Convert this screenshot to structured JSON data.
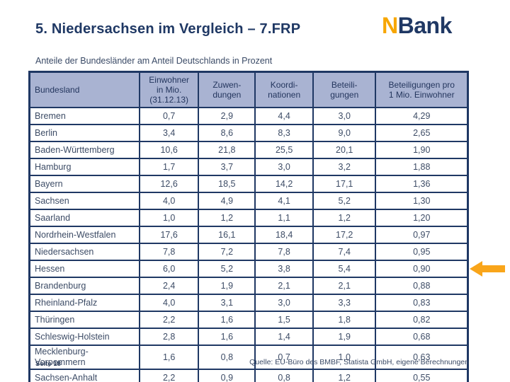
{
  "slide": {
    "title": "5. Niedersachsen im Vergleich – 7.FRP",
    "subtitle": "Anteile der Bundesländer am Anteil Deutschlands in Prozent",
    "logo": {
      "part1": "N",
      "part2": "Bank"
    },
    "footer": {
      "page": "Seite 18",
      "source": "Quelle: EU-Büro des BMBF, Statista GmbH, eigene Berechnungen"
    }
  },
  "colors": {
    "navy": "#1f3864",
    "header_bg": "#a9b3d2",
    "body_text": "#3d4c66",
    "accent_orange": "#f9a51a",
    "logo_orange": "#f7a600"
  },
  "table": {
    "columns": [
      "Bundesland",
      "Einwohner\nin Mio.\n(31.12.13)",
      "Zuwen-\ndungen",
      "Koordi-\nnationen",
      "Beteili-\ngungen",
      "Beteiligungen pro\n1 Mio. Einwohner"
    ],
    "arrow_row": "Hessen",
    "rows": [
      {
        "name": "Bremen",
        "values": [
          "0,7",
          "2,9",
          "4,4",
          "3,0",
          "4,29"
        ]
      },
      {
        "name": "Berlin",
        "values": [
          "3,4",
          "8,6",
          "8,3",
          "9,0",
          "2,65"
        ]
      },
      {
        "name": "Baden-Württemberg",
        "values": [
          "10,6",
          "21,8",
          "25,5",
          "20,1",
          "1,90"
        ]
      },
      {
        "name": "Hamburg",
        "values": [
          "1,7",
          "3,7",
          "3,0",
          "3,2",
          "1,88"
        ]
      },
      {
        "name": "Bayern",
        "values": [
          "12,6",
          "18,5",
          "14,2",
          "17,1",
          "1,36"
        ]
      },
      {
        "name": "Sachsen",
        "values": [
          "4,0",
          "4,9",
          "4,1",
          "5,2",
          "1,30"
        ]
      },
      {
        "name": "Saarland",
        "values": [
          "1,0",
          "1,2",
          "1,1",
          "1,2",
          "1,20"
        ]
      },
      {
        "name": "Nordrhein-Westfalen",
        "values": [
          "17,6",
          "16,1",
          "18,4",
          "17,2",
          "0,97"
        ]
      },
      {
        "name": "Niedersachsen",
        "values": [
          "7,8",
          "7,2",
          "7,8",
          "7,4",
          "0,95"
        ]
      },
      {
        "name": "Hessen",
        "values": [
          "6,0",
          "5,2",
          "3,8",
          "5,4",
          "0,90"
        ]
      },
      {
        "name": "Brandenburg",
        "values": [
          "2,4",
          "1,9",
          "2,1",
          "2,1",
          "0,88"
        ]
      },
      {
        "name": "Rheinland-Pfalz",
        "values": [
          "4,0",
          "3,1",
          "3,0",
          "3,3",
          "0,83"
        ]
      },
      {
        "name": "Thüringen",
        "values": [
          "2,2",
          "1,6",
          "1,5",
          "1,8",
          "0,82"
        ]
      },
      {
        "name": "Schleswig-Holstein",
        "values": [
          "2,8",
          "1,6",
          "1,4",
          "1,9",
          "0,68"
        ]
      },
      {
        "name": "Mecklenburg-\nVorpommern",
        "values": [
          "1,6",
          "0,8",
          "0,7",
          "1,0",
          "0,63"
        ]
      },
      {
        "name": "Sachsen-Anhalt",
        "values": [
          "2,2",
          "0,9",
          "0,8",
          "1,2",
          "0,55"
        ]
      }
    ]
  }
}
